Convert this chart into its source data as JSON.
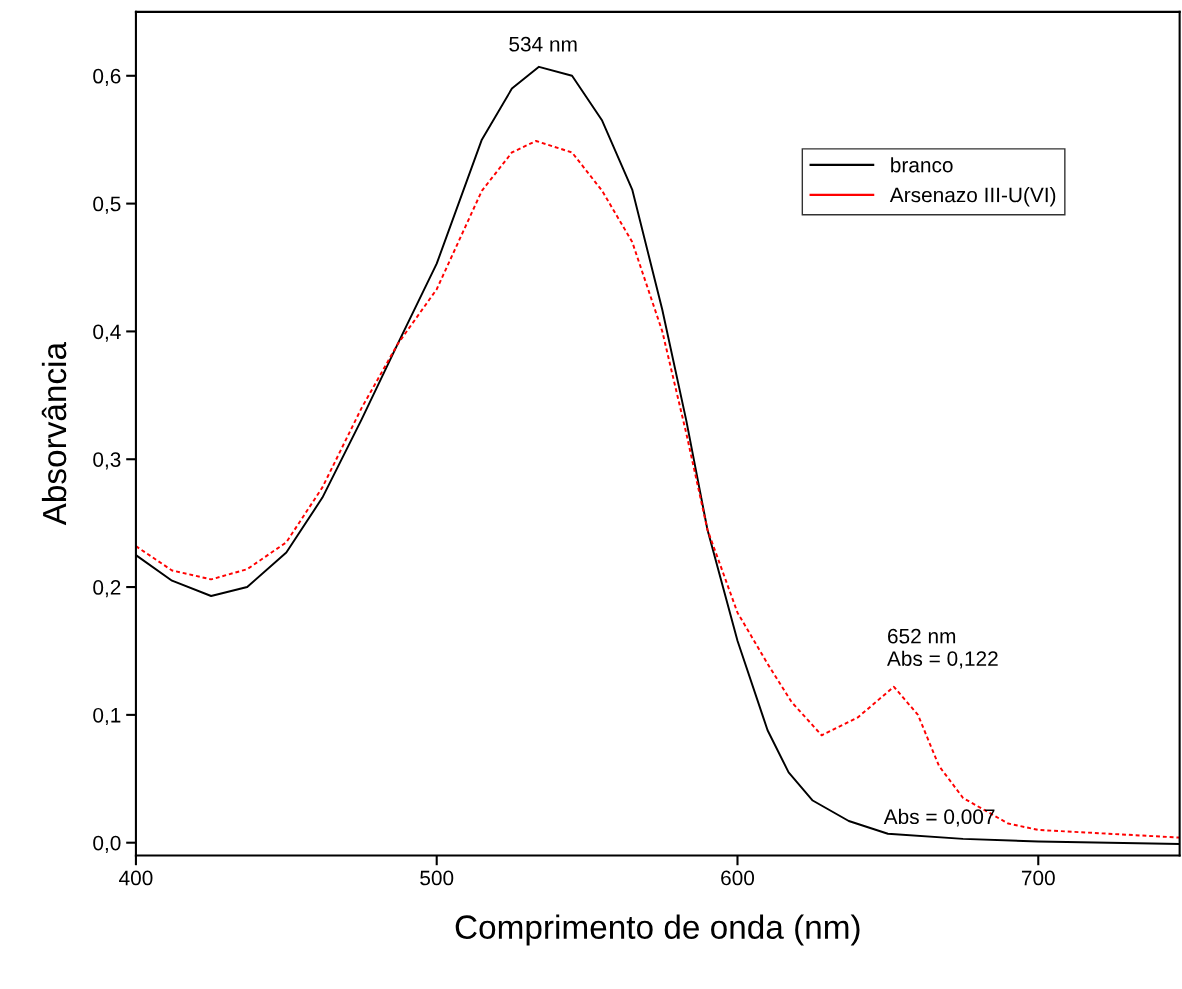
{
  "chart_data": {
    "type": "line",
    "xlabel": "Comprimento de onda (nm)",
    "ylabel": "Absorvância",
    "xlim": [
      400,
      747
    ],
    "xticks": [
      400,
      500,
      600,
      700
    ],
    "ylim": [
      -0.01,
      0.65
    ],
    "yticks": [
      {
        "value": 0,
        "label": "0,0"
      },
      {
        "value": 0.1,
        "label": "0,1"
      },
      {
        "value": 0.2,
        "label": "0,2"
      },
      {
        "value": 0.3,
        "label": "0,3"
      },
      {
        "value": 0.4,
        "label": "0,4"
      },
      {
        "value": 0.5,
        "label": "0,5"
      },
      {
        "value": 0.6,
        "label": "0,6"
      }
    ],
    "grid": false,
    "legend": "top right",
    "series": [
      {
        "name": "branco",
        "color": "#000000",
        "line_style": "solid",
        "x": [
          400,
          412,
          425,
          437,
          450,
          462,
          475,
          487,
          500,
          515,
          525,
          534,
          545,
          555,
          565,
          575,
          583,
          590,
          600,
          610,
          617,
          625,
          637,
          650,
          675,
          700,
          747
        ],
        "values": [
          0.225,
          0.205,
          0.193,
          0.2,
          0.227,
          0.27,
          0.331,
          0.39,
          0.453,
          0.55,
          0.59,
          0.607,
          0.6,
          0.565,
          0.511,
          0.417,
          0.33,
          0.245,
          0.158,
          0.088,
          0.055,
          0.033,
          0.017,
          0.007,
          0.003,
          0.001,
          -0.001
        ]
      },
      {
        "name": "Arsenazo III-U(VI)",
        "color": "#ff0000",
        "line_style": "dotted",
        "x": [
          400,
          412,
          425,
          437,
          450,
          462,
          475,
          487,
          500,
          515,
          525,
          533,
          545,
          555,
          565,
          575,
          583,
          590,
          600,
          610,
          618,
          628,
          640,
          652,
          660,
          667,
          675,
          690,
          700,
          747
        ],
        "values": [
          0.232,
          0.213,
          0.206,
          0.214,
          0.235,
          0.278,
          0.34,
          0.39,
          0.433,
          0.51,
          0.54,
          0.549,
          0.54,
          0.51,
          0.47,
          0.4,
          0.32,
          0.245,
          0.18,
          0.14,
          0.11,
          0.084,
          0.098,
          0.122,
          0.1,
          0.06,
          0.035,
          0.015,
          0.01,
          0.004
        ]
      }
    ],
    "annotations": [
      {
        "text": "534 nm",
        "x": 534,
        "y": 0.607
      },
      {
        "text": "652 nm\nAbs = 0,122",
        "x": 652,
        "y": 0.122
      },
      {
        "text": "Abs = 0,007",
        "x": 650,
        "y": 0.007
      }
    ]
  }
}
